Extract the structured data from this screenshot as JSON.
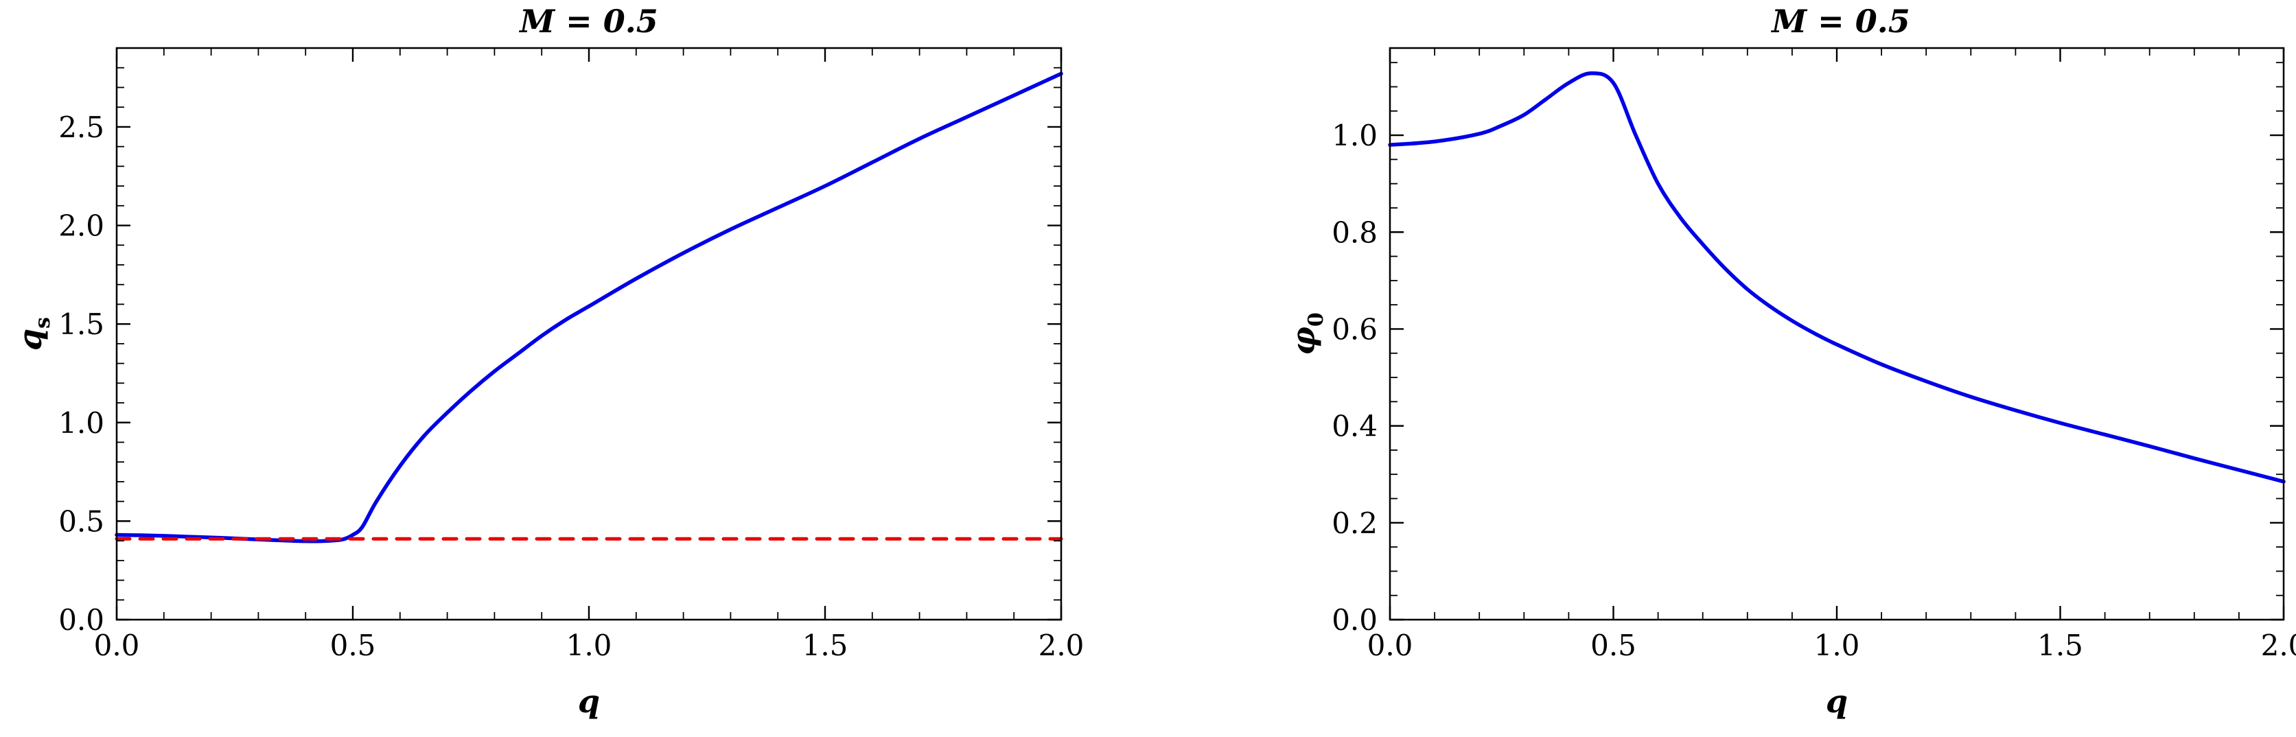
{
  "figure": {
    "background": "#ffffff",
    "frame_color": "#000000",
    "text_color": "#000000"
  },
  "chart_data": [
    {
      "type": "line",
      "title": "M = 0.5",
      "xlabel": "q",
      "ylabel_base": "q",
      "ylabel_sub": "s",
      "xlim": [
        0.0,
        2.0
      ],
      "ylim": [
        0.0,
        2.9
      ],
      "grid": false,
      "legend": "none",
      "xticks": {
        "values": [
          0.0,
          0.5,
          1.0,
          1.5,
          2.0
        ],
        "labels": [
          "0.0",
          "0.5",
          "1.0",
          "1.5",
          "2.0"
        ]
      },
      "yticks": {
        "values": [
          0.0,
          0.5,
          1.0,
          1.5,
          2.0,
          2.5
        ],
        "labels": [
          "0.0",
          "0.5",
          "1.0",
          "1.5",
          "2.0",
          "2.5"
        ]
      },
      "x_minor_step": 0.1,
      "y_minor_step": 0.1,
      "series": [
        {
          "name": "qs-curve",
          "color": "#0000e8",
          "dash": "solid",
          "width": 5.5,
          "x": [
            0,
            0.05,
            0.1,
            0.15,
            0.2,
            0.25,
            0.3,
            0.35,
            0.4,
            0.45,
            0.48,
            0.5,
            0.52,
            0.55,
            0.6,
            0.65,
            0.7,
            0.75,
            0.8,
            0.85,
            0.9,
            0.95,
            1.0,
            1.1,
            1.2,
            1.3,
            1.4,
            1.5,
            1.6,
            1.7,
            1.8,
            1.9,
            2.0
          ],
          "y": [
            0.43,
            0.428,
            0.425,
            0.421,
            0.417,
            0.412,
            0.407,
            0.402,
            0.398,
            0.4,
            0.408,
            0.43,
            0.47,
            0.6,
            0.78,
            0.93,
            1.05,
            1.16,
            1.26,
            1.35,
            1.44,
            1.52,
            1.59,
            1.73,
            1.86,
            1.98,
            2.09,
            2.2,
            2.32,
            2.44,
            2.55,
            2.66,
            2.77
          ]
        },
        {
          "name": "dashed-asymptote",
          "color": "#ea0000",
          "dash": "dashed",
          "width": 5,
          "x": [
            0.0,
            2.0
          ],
          "y": [
            0.41,
            0.41
          ]
        }
      ]
    },
    {
      "type": "line",
      "title": "M = 0.5",
      "xlabel": "q",
      "ylabel_base": "φ",
      "ylabel_sub": "0",
      "xlim": [
        0.0,
        2.0
      ],
      "ylim": [
        0.0,
        1.18
      ],
      "grid": false,
      "legend": "none",
      "xticks": {
        "values": [
          0.0,
          0.5,
          1.0,
          1.5,
          2.0
        ],
        "labels": [
          "0.0",
          "0.5",
          "1.0",
          "1.5",
          "2.0"
        ]
      },
      "yticks": {
        "values": [
          0.0,
          0.2,
          0.4,
          0.6,
          0.8,
          1.0
        ],
        "labels": [
          "0.0",
          "0.2",
          "0.4",
          "0.6",
          "0.8",
          "1.0"
        ]
      },
      "x_minor_step": 0.1,
      "y_minor_step": 0.05,
      "series": [
        {
          "name": "phi0-curve",
          "color": "#0000e8",
          "dash": "solid",
          "width": 5.5,
          "x": [
            0,
            0.1,
            0.2,
            0.25,
            0.3,
            0.35,
            0.4,
            0.45,
            0.5,
            0.55,
            0.6,
            0.65,
            0.7,
            0.75,
            0.8,
            0.85,
            0.9,
            0.95,
            1.0,
            1.1,
            1.2,
            1.3,
            1.4,
            1.5,
            1.6,
            1.7,
            1.8,
            1.9,
            2.0
          ],
          "y": [
            0.98,
            0.987,
            1.003,
            1.02,
            1.042,
            1.075,
            1.108,
            1.128,
            1.108,
            1.0,
            0.9,
            0.83,
            0.775,
            0.725,
            0.682,
            0.647,
            0.617,
            0.591,
            0.568,
            0.527,
            0.492,
            0.46,
            0.432,
            0.406,
            0.382,
            0.358,
            0.333,
            0.309,
            0.285
          ]
        }
      ]
    }
  ]
}
